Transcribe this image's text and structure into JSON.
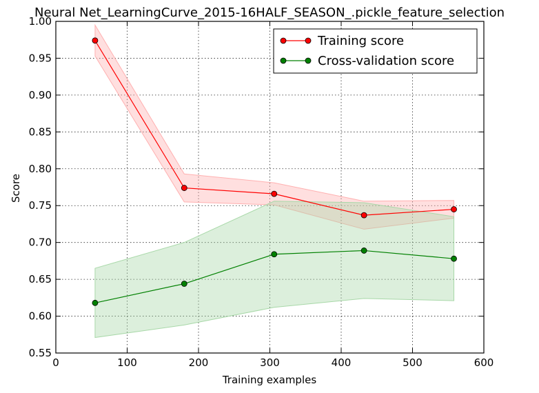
{
  "chart_data": {
    "type": "line",
    "title": "Neural Net_LearningCurve_2015-16HALF_SEASON_.pickle_feature_selection",
    "xlabel": "Training examples",
    "ylabel": "Score",
    "xlim": [
      0,
      600
    ],
    "ylim": [
      0.55,
      1.0
    ],
    "xticks": [
      "0",
      "100",
      "200",
      "300",
      "400",
      "500",
      "600"
    ],
    "yticks": [
      "0.55",
      "0.60",
      "0.65",
      "0.70",
      "0.75",
      "0.80",
      "0.85",
      "0.90",
      "0.95",
      "1.00"
    ],
    "grid": true,
    "legend_position": "top-right",
    "x": [
      55,
      180,
      306,
      432,
      558
    ],
    "series": [
      {
        "name": "Training score",
        "color": "#ff0000",
        "band_color": "#ffb0b0",
        "values": [
          0.974,
          0.774,
          0.766,
          0.737,
          0.745
        ],
        "upper": [
          0.995,
          0.793,
          0.781,
          0.756,
          0.757
        ],
        "lower": [
          0.953,
          0.755,
          0.751,
          0.718,
          0.733
        ]
      },
      {
        "name": "Cross-validation score",
        "color": "#008000",
        "band_color": "#a8d8a8",
        "values": [
          0.618,
          0.644,
          0.684,
          0.689,
          0.678
        ],
        "upper": [
          0.665,
          0.7,
          0.756,
          0.754,
          0.735
        ],
        "lower": [
          0.571,
          0.588,
          0.612,
          0.624,
          0.621
        ]
      }
    ]
  }
}
